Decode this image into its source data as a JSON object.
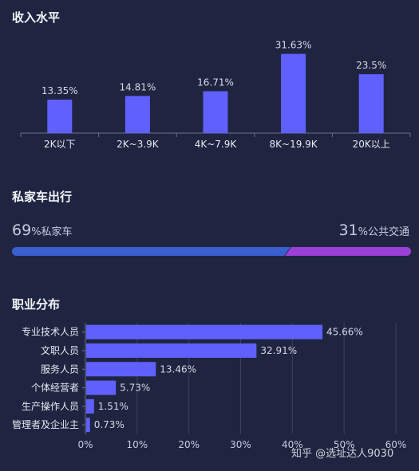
{
  "sections": {
    "income_title": "收入水平",
    "car_title": "私家车出行",
    "job_title": "职业分布"
  },
  "car": {
    "private_pct": "69",
    "private_unit": "%",
    "private_label": "私家车",
    "public_pct": "31",
    "public_unit": "%",
    "public_label": "公共交通",
    "private_share": 0.69
  },
  "watermark": "知乎 @选址达人9030",
  "colors": {
    "bar": "#6060ff",
    "car_private": "#3a5fcf",
    "car_public": "#9b3fd6",
    "axis": "#6a7092",
    "grid": "#3a4063"
  },
  "chart_data": [
    {
      "type": "bar",
      "title": "收入水平",
      "categories": [
        "2K以下",
        "2K~3.9K",
        "4K~7.9K",
        "8K~19.9K",
        "20K以上"
      ],
      "values": [
        13.35,
        14.81,
        16.71,
        31.63,
        23.5
      ],
      "data_labels": [
        "13.35%",
        "14.81%",
        "16.71%",
        "31.63%",
        "23.5%"
      ],
      "ylim": [
        0,
        35
      ],
      "grid": false
    },
    {
      "type": "bar",
      "orientation": "horizontal",
      "title": "职业分布",
      "categories": [
        "专业技术人员",
        "文职人员",
        "服务人员",
        "个体经营者",
        "生产操作人员",
        "管理者及企业主"
      ],
      "values": [
        45.66,
        32.91,
        13.46,
        5.73,
        1.51,
        0.73
      ],
      "data_labels": [
        "45.66%",
        "32.91%",
        "13.46%",
        "5.73%",
        "1.51%",
        "0.73%"
      ],
      "xticks": [
        "0%",
        "10%",
        "20%",
        "30%",
        "40%",
        "50%",
        "60%"
      ],
      "xlim": [
        0,
        60
      ],
      "grid": true
    }
  ]
}
